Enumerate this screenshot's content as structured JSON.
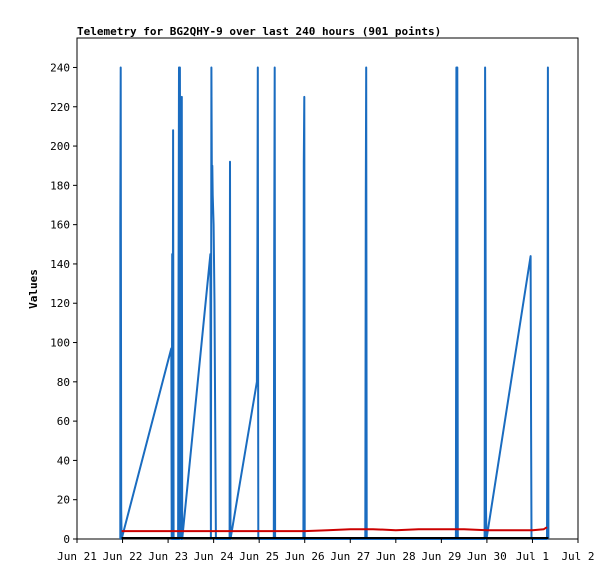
{
  "chart_data": {
    "type": "line",
    "title": "Telemetry for BG2QHY-9 over last 240 hours (901 points)",
    "xlabel": "",
    "ylabel": "Values",
    "ylim": [
      0,
      255
    ],
    "xlim": [
      0,
      11
    ],
    "x_ticks": [
      {
        "label": "Jun 21",
        "x": 0
      },
      {
        "label": "Jun 22",
        "x": 1
      },
      {
        "label": "Jun 23",
        "x": 2
      },
      {
        "label": "Jun 24",
        "x": 3
      },
      {
        "label": "Jun 25",
        "x": 4
      },
      {
        "label": "Jun 26",
        "x": 5
      },
      {
        "label": "Jun 27",
        "x": 6
      },
      {
        "label": "Jun 28",
        "x": 7
      },
      {
        "label": "Jun 29",
        "x": 8
      },
      {
        "label": "Jun 30",
        "x": 9
      },
      {
        "label": "Jul 1",
        "x": 10
      },
      {
        "label": "Jul 2",
        "x": 11
      }
    ],
    "y_ticks": [
      0,
      20,
      40,
      60,
      80,
      100,
      120,
      140,
      160,
      180,
      200,
      220,
      240
    ],
    "grid": false,
    "series": [
      {
        "color": "#1a6cc0",
        "points": [
          [
            0.95,
            0
          ],
          [
            0.95,
            160
          ],
          [
            0.96,
            240
          ],
          [
            0.97,
            15
          ],
          [
            0.98,
            0
          ],
          [
            2.07,
            97
          ],
          [
            2.08,
            0
          ],
          [
            2.09,
            145
          ],
          [
            2.1,
            0
          ],
          [
            2.11,
            208
          ],
          [
            2.12,
            0
          ],
          [
            2.22,
            0
          ],
          [
            2.23,
            145
          ],
          [
            2.24,
            240
          ],
          [
            2.25,
            0
          ],
          [
            2.26,
            240
          ],
          [
            2.27,
            120
          ],
          [
            2.28,
            200
          ],
          [
            2.29,
            0
          ],
          [
            2.3,
            225
          ],
          [
            2.31,
            0
          ],
          [
            2.93,
            145
          ],
          [
            2.94,
            0
          ],
          [
            2.95,
            240
          ],
          [
            2.96,
            190
          ],
          [
            2.97,
            190
          ],
          [
            2.98,
            175
          ],
          [
            3.0,
            160
          ],
          [
            3.02,
            120
          ],
          [
            3.05,
            0
          ],
          [
            3.35,
            0
          ],
          [
            3.36,
            192
          ],
          [
            3.37,
            0
          ],
          [
            3.95,
            80
          ],
          [
            3.96,
            150
          ],
          [
            3.97,
            240
          ],
          [
            3.98,
            0
          ],
          [
            4.32,
            0
          ],
          [
            4.33,
            145
          ],
          [
            4.34,
            240
          ],
          [
            4.35,
            0
          ],
          [
            4.97,
            0
          ],
          [
            4.98,
            192
          ],
          [
            4.99,
            225
          ],
          [
            5.0,
            0
          ],
          [
            6.33,
            0
          ],
          [
            6.34,
            176
          ],
          [
            6.35,
            240
          ],
          [
            6.36,
            0
          ],
          [
            8.32,
            0
          ],
          [
            8.33,
            240
          ],
          [
            8.34,
            0
          ],
          [
            8.35,
            240
          ],
          [
            8.36,
            0
          ],
          [
            8.95,
            0
          ],
          [
            8.96,
            240
          ],
          [
            8.97,
            176
          ],
          [
            8.98,
            15
          ],
          [
            8.99,
            0
          ],
          [
            9.96,
            144
          ],
          [
            9.97,
            55
          ],
          [
            9.98,
            0
          ],
          [
            10.32,
            0
          ],
          [
            10.33,
            80
          ],
          [
            10.34,
            240
          ],
          [
            10.35,
            0
          ]
        ]
      },
      {
        "color": "#cc0000",
        "points": [
          [
            0.98,
            4
          ],
          [
            2.0,
            4
          ],
          [
            3.0,
            4
          ],
          [
            4.0,
            4
          ],
          [
            5.0,
            4
          ],
          [
            5.5,
            4.5
          ],
          [
            6.0,
            5
          ],
          [
            6.5,
            5
          ],
          [
            7.0,
            4.5
          ],
          [
            7.5,
            5
          ],
          [
            8.0,
            5
          ],
          [
            8.5,
            5
          ],
          [
            9.0,
            4.5
          ],
          [
            9.5,
            4.5
          ],
          [
            10.0,
            4.5
          ],
          [
            10.25,
            5
          ],
          [
            10.32,
            6
          ]
        ]
      },
      {
        "color": "#000000",
        "points": [
          [
            0.98,
            0.5
          ],
          [
            10.35,
            0.5
          ]
        ]
      }
    ]
  }
}
